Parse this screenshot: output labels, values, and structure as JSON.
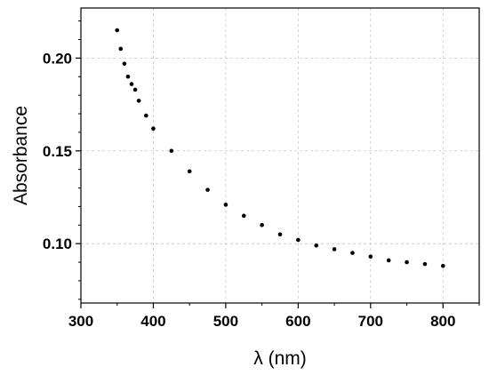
{
  "chart_data": {
    "type": "scatter",
    "title": "",
    "xlabel": "λ (nm)",
    "ylabel": "Absorbance",
    "xlim": [
      300,
      850
    ],
    "ylim": [
      0.068,
      0.227
    ],
    "x_ticks": [
      300,
      400,
      500,
      600,
      700,
      800
    ],
    "x_tick_labels": [
      "300",
      "400",
      "500",
      "600",
      "700",
      "800"
    ],
    "y_ticks": [
      0.1,
      0.15,
      0.2
    ],
    "y_tick_labels": [
      "0.10",
      "0.15",
      "0.20"
    ],
    "grid": true,
    "legend": "none",
    "marker_color": "#000000",
    "series": [
      {
        "x": [
          350,
          355,
          360,
          365,
          370,
          375,
          380,
          390,
          400,
          425,
          450,
          475,
          500,
          525,
          550,
          575,
          600,
          625,
          650,
          675,
          700,
          725,
          750,
          775,
          800
        ],
        "y": [
          0.215,
          0.205,
          0.197,
          0.19,
          0.186,
          0.183,
          0.177,
          0.169,
          0.162,
          0.15,
          0.139,
          0.129,
          0.121,
          0.115,
          0.11,
          0.105,
          0.102,
          0.099,
          0.097,
          0.095,
          0.093,
          0.091,
          0.09,
          0.089,
          0.088
        ]
      }
    ]
  }
}
